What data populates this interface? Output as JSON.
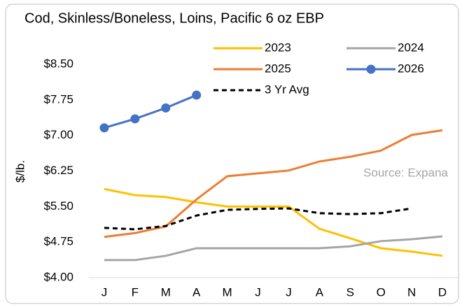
{
  "chart_data": {
    "type": "line",
    "title": "Cod, Skinless/Boneless, Loins, Pacific 6 oz EBP",
    "y_label": "$/lb.",
    "annotation": "Source: Expana",
    "categories": [
      "J",
      "F",
      "M",
      "A",
      "M",
      "J",
      "J",
      "A",
      "S",
      "O",
      "N",
      "D"
    ],
    "series": [
      {
        "name": "2023",
        "color": "#ffc000",
        "dash": false,
        "markers": false,
        "values": [
          5.87,
          5.74,
          5.7,
          5.59,
          5.5,
          5.5,
          5.5,
          5.03,
          4.83,
          4.62,
          4.55,
          4.46
        ]
      },
      {
        "name": "2024",
        "color": "#a5a5a5",
        "dash": false,
        "markers": false,
        "values": [
          4.37,
          4.37,
          4.46,
          4.62,
          4.62,
          4.62,
          4.62,
          4.62,
          4.66,
          4.77,
          4.81,
          4.87
        ]
      },
      {
        "name": "2025",
        "color": "#ed7d31",
        "dash": false,
        "markers": false,
        "values": [
          4.86,
          4.94,
          5.08,
          5.65,
          6.14,
          6.2,
          6.26,
          6.45,
          6.55,
          6.68,
          7.01,
          7.11
        ]
      },
      {
        "name": "2026",
        "color": "#4472c4",
        "dash": false,
        "markers": true,
        "values": [
          7.16,
          7.35,
          7.58,
          7.85,
          null,
          null,
          null,
          null,
          null,
          null,
          null,
          null
        ]
      },
      {
        "name": "3 Yr Avg",
        "color": "#000000",
        "dash": true,
        "markers": false,
        "values": [
          5.05,
          5.02,
          5.09,
          5.31,
          5.43,
          5.45,
          5.46,
          5.36,
          5.34,
          5.36,
          5.46,
          null
        ]
      }
    ],
    "ylim": [
      4.0,
      8.5
    ],
    "yticks": [
      {
        "value": 4.0,
        "label": "$4.00"
      },
      {
        "value": 4.75,
        "label": "$4.75"
      },
      {
        "value": 5.5,
        "label": "$5.50"
      },
      {
        "value": 6.25,
        "label": "$6.25"
      },
      {
        "value": 7.0,
        "label": "$7.00"
      },
      {
        "value": 7.75,
        "label": "$7.75"
      },
      {
        "value": 8.5,
        "label": "$8.50"
      }
    ],
    "grid": false,
    "legend": "top"
  }
}
